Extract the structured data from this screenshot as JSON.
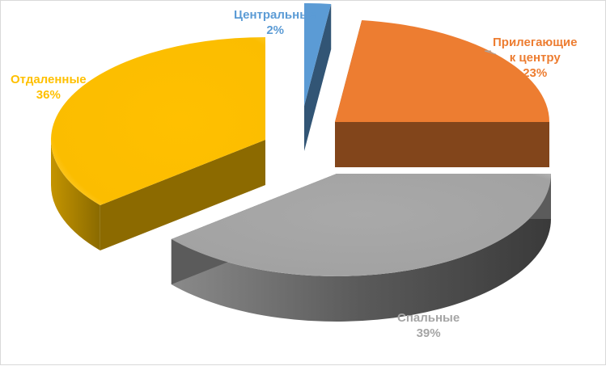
{
  "chart_data": {
    "type": "pie",
    "style": "3d-exploded",
    "title": "",
    "slices": [
      {
        "label": "Центральные",
        "label_lines": [
          "Центральные"
        ],
        "value": 2,
        "value_label": "2%",
        "color": "#5b9bd5",
        "label_color": "#5b9bd5"
      },
      {
        "label": "Прилегающие к центру",
        "label_lines": [
          "Прилегающие",
          "к центру"
        ],
        "value": 23,
        "value_label": "23%",
        "color": "#ed7d31",
        "label_color": "#ed7d31"
      },
      {
        "label": "Спальные",
        "label_lines": [
          "Спальные"
        ],
        "value": 39,
        "value_label": "39%",
        "color": "#a5a5a5",
        "label_color": "#a5a5a5"
      },
      {
        "label": "Отдаленные",
        "label_lines": [
          "Отдаленные"
        ],
        "value": 36,
        "value_label": "36%",
        "color": "#ffc000",
        "label_color": "#ffc000"
      }
    ]
  }
}
